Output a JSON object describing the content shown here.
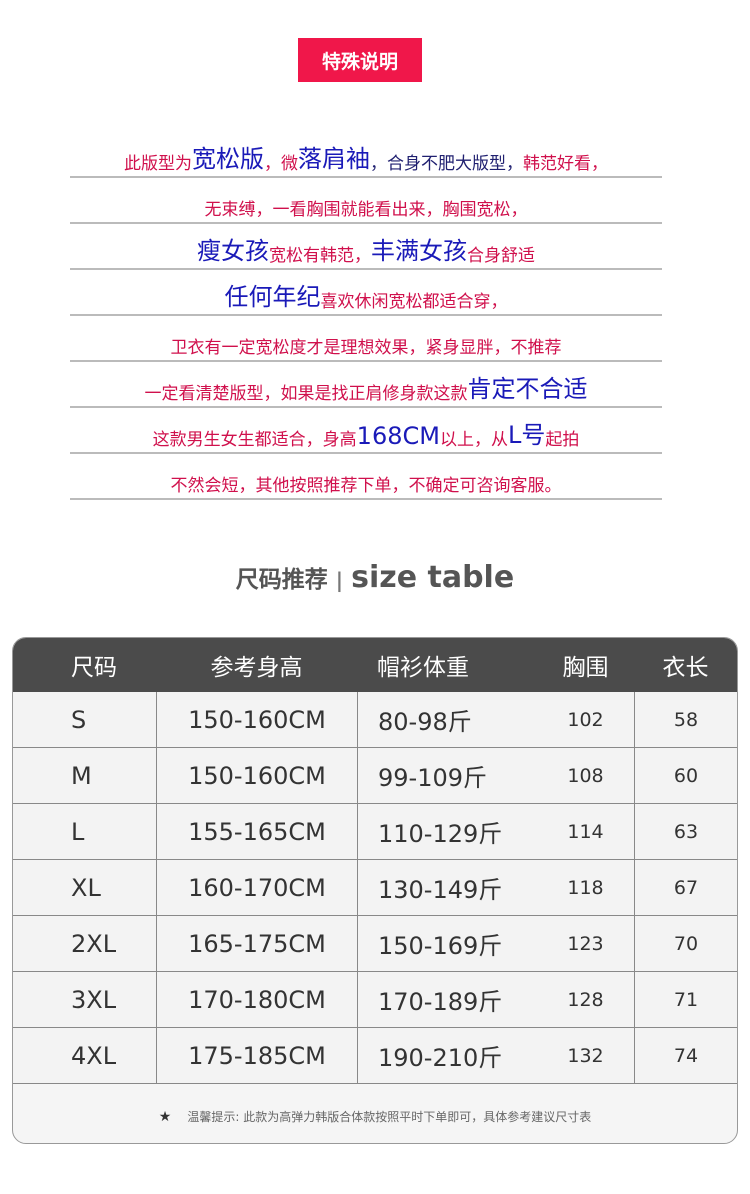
{
  "badge": "特殊说明",
  "lines": [
    [
      [
        "r",
        "此版型为"
      ],
      [
        "b",
        "宽松版"
      ],
      [
        "r",
        "，微"
      ],
      [
        "b",
        "落肩袖"
      ],
      [
        "d",
        "，合身不肥大版型，"
      ],
      [
        "r",
        "韩范好看，"
      ]
    ],
    [
      [
        "r",
        "无束缚，一看胸围就能看出来，胸围宽松，"
      ]
    ],
    [
      [
        "b",
        "瘦女孩"
      ],
      [
        "r",
        "宽松有韩范，"
      ],
      [
        "b",
        "丰满女孩"
      ],
      [
        "r",
        "合身舒适"
      ]
    ],
    [
      [
        "b",
        "任何年纪"
      ],
      [
        "r",
        "喜欢休闲宽松都适合穿，"
      ]
    ],
    [
      [
        "r",
        "卫衣有一定宽松度才是理想效果，紧身显胖，不推荐"
      ]
    ],
    [
      [
        "r",
        "一定看清楚版型，如果是找正肩修身款这款"
      ],
      [
        "b",
        "肯定不合适"
      ]
    ],
    [
      [
        "r",
        "这款男生女生都适合，身高"
      ],
      [
        "b",
        "168CM"
      ],
      [
        "r",
        "以上，从"
      ],
      [
        "b",
        "L号"
      ],
      [
        "r",
        "起拍"
      ]
    ],
    [
      [
        "r",
        "不然会短，其他按照推荐下单，不确定可咨询客服。"
      ]
    ]
  ],
  "section": {
    "title_cn": "尺码推荐",
    "separator": "|",
    "title_en": "size table"
  },
  "table": {
    "headers": [
      "尺码",
      "参考身高",
      "帽衫体重",
      "胸围",
      "衣长"
    ],
    "rows": [
      [
        "S",
        "150-160CM",
        "80-98斤",
        "102",
        "58"
      ],
      [
        "M",
        "150-160CM",
        "99-109斤",
        "108",
        "60"
      ],
      [
        "L",
        "155-165CM",
        "110-129斤",
        "114",
        "63"
      ],
      [
        "XL",
        "160-170CM",
        "130-149斤",
        "118",
        "67"
      ],
      [
        "2XL",
        "165-175CM",
        "150-169斤",
        "123",
        "70"
      ],
      [
        "3XL",
        "170-180CM",
        "170-189斤",
        "128",
        "71"
      ],
      [
        "4XL",
        "175-185CM",
        "190-210斤",
        "132",
        "74"
      ]
    ],
    "footnote": "温馨提示: 此款为高弹力韩版合体款按照平时下单即可，具体参考建议尺寸表",
    "footnote_icon": "star-icon"
  },
  "colors": {
    "badge": "#f0174a",
    "red_text": "#d0104c",
    "blue_text": "#1a1ab8",
    "header_bg": "#4b4b4b"
  }
}
